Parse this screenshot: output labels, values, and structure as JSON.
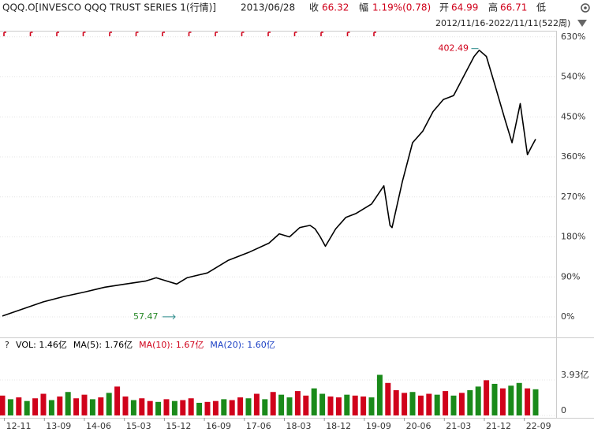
{
  "header": {
    "symbol": "QQQ.O[INVESCO QQQ TRUST SERIES 1(行情)]",
    "date": "2013/06/28",
    "close_label": "收",
    "close": "66.32",
    "change_label": "幅",
    "change": "1.19%(0.78)",
    "open_label": "开",
    "open": "64.99",
    "high_label": "高",
    "high": "66.71",
    "low_label": "低",
    "range": "2012/11/16-2022/11/11(522周)"
  },
  "chart_data": [
    {
      "type": "line",
      "color": "#000000",
      "x": [
        0,
        20,
        40,
        60,
        80,
        100,
        120,
        140,
        150,
        160,
        170,
        180,
        200,
        220,
        240,
        260,
        270,
        280,
        290,
        300,
        305,
        310,
        315,
        325,
        335,
        345,
        360,
        372,
        378,
        380,
        390,
        400,
        410,
        420,
        430,
        440,
        450,
        460,
        465,
        472,
        480,
        490,
        497,
        505,
        512,
        516,
        520
      ],
      "values": [
        2,
        18,
        34,
        46,
        56,
        67,
        74,
        81,
        88,
        81,
        74,
        88,
        99,
        127,
        145,
        166,
        187,
        180,
        201,
        206,
        198,
        180,
        159,
        198,
        224,
        233,
        254,
        295,
        206,
        201,
        304,
        392,
        418,
        462,
        489,
        498,
        542,
        586,
        600,
        586,
        524,
        445,
        392,
        480,
        365,
        383,
        400
      ],
      "ylim": [
        -46,
        642
      ],
      "yticks": [
        {
          "value": 0,
          "label": "0%"
        },
        {
          "value": 90,
          "label": "90%"
        },
        {
          "value": 180,
          "label": "180%"
        },
        {
          "value": 270,
          "label": "270%"
        },
        {
          "value": 360,
          "label": "360%"
        },
        {
          "value": 450,
          "label": "450%"
        },
        {
          "value": 540,
          "label": "540%"
        },
        {
          "value": 630,
          "label": "630%"
        }
      ],
      "xlim": [
        0,
        540
      ],
      "xticks": [
        {
          "value": 2,
          "label": "12-11"
        },
        {
          "value": 41,
          "label": "13-09"
        },
        {
          "value": 80,
          "label": "14-06"
        },
        {
          "value": 119,
          "label": "15-03"
        },
        {
          "value": 158,
          "label": "15-12"
        },
        {
          "value": 197,
          "label": "16-09"
        },
        {
          "value": 236,
          "label": "17-06"
        },
        {
          "value": 275,
          "label": "18-03"
        },
        {
          "value": 314,
          "label": "18-12"
        },
        {
          "value": 353,
          "label": "19-09"
        },
        {
          "value": 392,
          "label": "20-06"
        },
        {
          "value": 431,
          "label": "21-03"
        },
        {
          "value": 470,
          "label": "21-12"
        },
        {
          "value": 509,
          "label": "22-09"
        }
      ],
      "annotations": [
        {
          "text": "402.49",
          "color": "#d0021b"
        },
        {
          "text": "57.47",
          "color": "#2a8a2a"
        }
      ]
    },
    {
      "type": "bar",
      "legend": [
        {
          "text": "VOL: 1.46亿",
          "color": "#000000"
        },
        {
          "text": "MA(5): 1.76亿",
          "color": "#000000"
        },
        {
          "text": "MA(10): 1.67亿",
          "color": "#d0021b"
        },
        {
          "text": "MA(20): 1.60亿",
          "color": "#1a3fc4"
        }
      ],
      "x": [
        0,
        8,
        16,
        24,
        32,
        40,
        48,
        56,
        64,
        72,
        80,
        88,
        96,
        104,
        112,
        120,
        128,
        136,
        144,
        152,
        160,
        168,
        176,
        184,
        192,
        200,
        208,
        216,
        224,
        232,
        240,
        248,
        256,
        264,
        272,
        280,
        288,
        296,
        304,
        312,
        320,
        328,
        336,
        344,
        352,
        360,
        368,
        376,
        384,
        392,
        400,
        408,
        416,
        424,
        432,
        440,
        448,
        456,
        464,
        472,
        480,
        488,
        496,
        504,
        512,
        520
      ],
      "values": [
        2.2,
        1.8,
        2.0,
        1.6,
        1.9,
        2.4,
        1.7,
        2.1,
        2.6,
        1.9,
        2.3,
        1.8,
        2.0,
        2.5,
        3.2,
        2.1,
        1.7,
        1.9,
        1.6,
        1.5,
        1.8,
        1.6,
        1.7,
        1.9,
        1.4,
        1.5,
        1.6,
        1.8,
        1.7,
        2.0,
        1.9,
        2.4,
        1.8,
        2.6,
        2.3,
        2.0,
        2.7,
        2.2,
        3.0,
        2.4,
        2.1,
        2.0,
        2.3,
        2.2,
        2.1,
        2.0,
        4.5,
        3.6,
        2.8,
        2.5,
        2.6,
        2.2,
        2.4,
        2.3,
        2.7,
        2.2,
        2.5,
        2.8,
        3.2,
        3.9,
        3.5,
        3.0,
        3.3,
        3.6,
        3.0,
        2.9
      ],
      "colors": [
        "#d0021b",
        "#1a8a1a",
        "#d0021b",
        "#1a8a1a",
        "#d0021b",
        "#d0021b",
        "#1a8a1a",
        "#d0021b",
        "#1a8a1a",
        "#d0021b",
        "#d0021b",
        "#1a8a1a",
        "#d0021b",
        "#1a8a1a",
        "#d0021b",
        "#d0021b",
        "#1a8a1a",
        "#d0021b",
        "#d0021b",
        "#1a8a1a",
        "#d0021b",
        "#1a8a1a",
        "#d0021b",
        "#d0021b",
        "#1a8a1a",
        "#d0021b",
        "#d0021b",
        "#1a8a1a",
        "#d0021b",
        "#d0021b",
        "#1a8a1a",
        "#d0021b",
        "#1a8a1a",
        "#d0021b",
        "#1a8a1a",
        "#1a8a1a",
        "#d0021b",
        "#d0021b",
        "#1a8a1a",
        "#1a8a1a",
        "#d0021b",
        "#d0021b",
        "#1a8a1a",
        "#d0021b",
        "#d0021b",
        "#1a8a1a",
        "#1a8a1a",
        "#d0021b",
        "#d0021b",
        "#d0021b",
        "#1a8a1a",
        "#d0021b",
        "#d0021b",
        "#1a8a1a",
        "#d0021b",
        "#1a8a1a",
        "#d0021b",
        "#1a8a1a",
        "#1a8a1a",
        "#d0021b",
        "#1a8a1a",
        "#d0021b",
        "#1a8a1a",
        "#1a8a1a",
        "#d0021b",
        "#1a8a1a"
      ],
      "ylim": [
        0,
        6.9
      ],
      "yticks": [
        0,
        {
          "value": 3.93,
          "label": "3.93亿"
        }
      ]
    }
  ]
}
